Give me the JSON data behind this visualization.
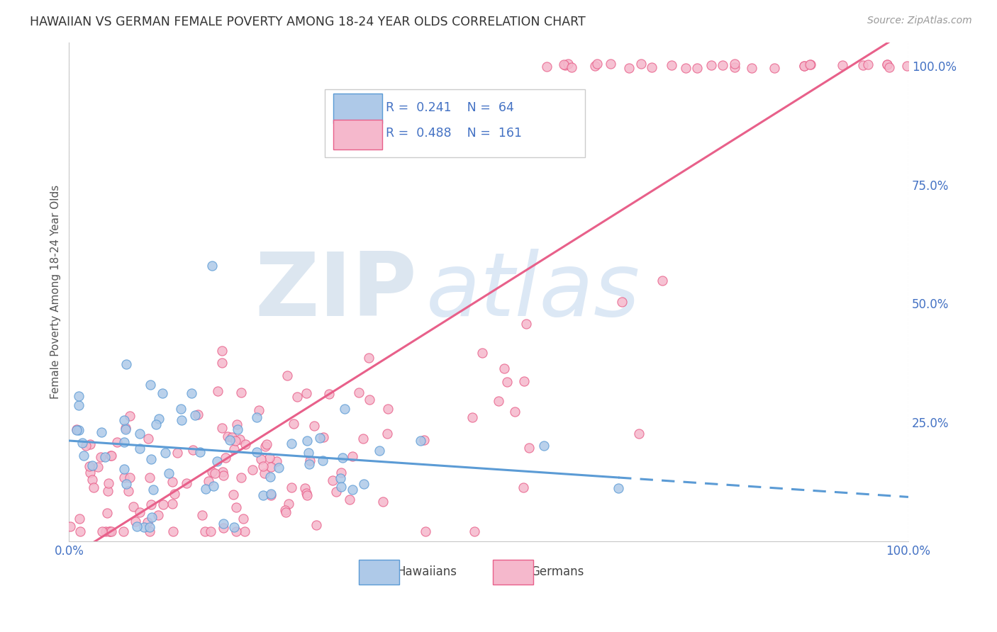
{
  "title": "HAWAIIAN VS GERMAN FEMALE POVERTY AMONG 18-24 YEAR OLDS CORRELATION CHART",
  "source": "Source: ZipAtlas.com",
  "ylabel": "Female Poverty Among 18-24 Year Olds",
  "hawaiian_color": "#5b9bd5",
  "hawaiian_fill": "#aec9e8",
  "german_color": "#e8608a",
  "german_fill": "#f5b8cc",
  "r_hawaiian": "0.241",
  "n_hawaiian": "64",
  "r_german": "0.488",
  "n_german": "161",
  "axis_blue": "#4472c4",
  "title_color": "#333333",
  "source_color": "#999999",
  "grid_color": "#c8c8c8",
  "watermark_zip_color": "#dce6f0",
  "watermark_atlas_color": "#dce8f5",
  "background": "#ffffff"
}
